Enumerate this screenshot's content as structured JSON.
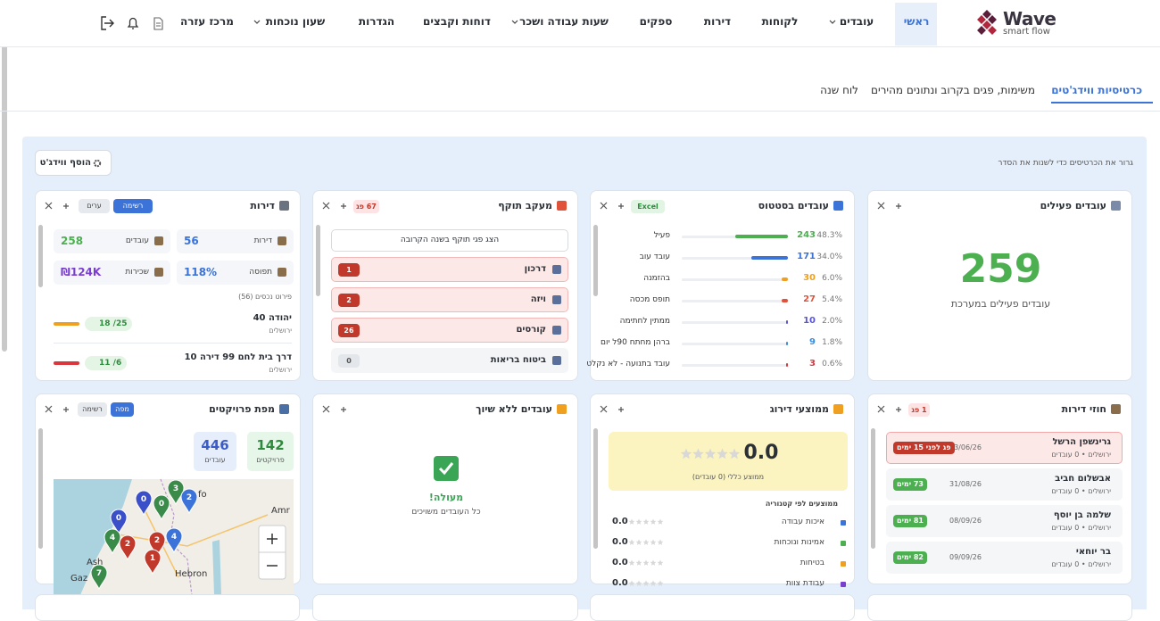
{
  "nav": {
    "logo": "Wave",
    "logo_sub": "smart flow",
    "items": [
      "ראשי",
      "עובדים",
      "לקוחות",
      "דירות",
      "ספקים",
      "שעות עבודה ושכר",
      "דוחות וקבצים",
      "הגדרות",
      "שעון נוכחות",
      "מרכז עזרה"
    ]
  },
  "tabs": [
    "כרטיסיות ווידג'טים",
    "משימות, פגים בקרוב ונתונים מהירים",
    "לוח שנה"
  ],
  "toolbar": {
    "hint": "גרור את הכרטיסים כדי לשנות את הסדר",
    "add_button": "הוסף ווידג'ט"
  },
  "widgets": {
    "active_employees": {
      "title": "עובדים פעילים",
      "value": 259,
      "caption": "עובדים פעילים במערכת"
    },
    "status": {
      "title": "עובדים בסטטוס",
      "badge": "Excel",
      "rows": [
        {
          "label": "פעיל",
          "count": 243,
          "percent": "48.3%",
          "color": "#4caf50"
        },
        {
          "label": "עובד עוב",
          "count": 171,
          "percent": "34.0%",
          "color": "#3b73d9"
        },
        {
          "label": "בהזמנה",
          "count": 30,
          "percent": "6.0%",
          "color": "#f0a020"
        },
        {
          "label": "תופס מכסה",
          "count": 27,
          "percent": "5.4%",
          "color": "#e0533a"
        },
        {
          "label": "ממתין לחתימה",
          "count": 10,
          "percent": "2.0%",
          "color": "#5a55d6"
        },
        {
          "label": "ברהן מחתח 90ל יום",
          "count": 9,
          "percent": "1.8%",
          "color": "#3b8fd9"
        },
        {
          "label": "עובד בתנועה - לא נקלט",
          "count": 3,
          "percent": "0.6%",
          "color": "#d9363e"
        }
      ]
    },
    "expiry": {
      "title": "מעקב תוקף",
      "badge": "67 פג",
      "button": "הצג פגי תוקף בשנה הקרובה",
      "rows": [
        {
          "label": "דרכון",
          "count": 1
        },
        {
          "label": "ויזה",
          "count": 2
        },
        {
          "label": "קורסים",
          "count": 26
        },
        {
          "label": "ביטוח בריאות",
          "count": 0
        }
      ]
    },
    "apartments": {
      "title": "דירות",
      "buttons": [
        "רשימה",
        "ערים"
      ],
      "stats": [
        {
          "label": "דירות",
          "value": "56",
          "color": "#3b73d9"
        },
        {
          "label": "עובדים",
          "value": "258",
          "color": "#4caf50"
        },
        {
          "label": "תפוסה",
          "value": "118%",
          "color": "#3b73d9"
        },
        {
          "label": "שכירות",
          "value": "₪124K",
          "color": "#7b3fd0"
        }
      ],
      "list_title": "פירוט נכסים (56)",
      "items": [
        {
          "name": "יהודה 40",
          "city": "ירושלים",
          "occupancy": "18 /25"
        },
        {
          "name": "דרך בית לחם 99 דירה 10",
          "city": "ירושלים",
          "occupancy": "11 /6"
        }
      ]
    },
    "contracts": {
      "title": "חוזי דירות",
      "badge": "1 פג",
      "rows": [
        {
          "name": "גרינשפן הרשל",
          "sub": "ירושלים • 0 עובדים",
          "date": "03/06/26",
          "status": "פג לפני 15 ימים"
        },
        {
          "name": "אבשלום חביב",
          "sub": "ירושלים • 0 עובדים",
          "date": "31/08/26",
          "status": "73 ימים"
        },
        {
          "name": "שלמה בן יוסף",
          "sub": "ירושלים • 0 עובדים",
          "date": "08/09/26",
          "status": "81 ימים"
        },
        {
          "name": "בר יוחאי",
          "sub": "ירושלים • 0 עובדים",
          "date": "09/09/26",
          "status": "82 ימים"
        }
      ]
    },
    "ratings": {
      "title": "ממוצעי דירוג",
      "value": "0.0",
      "caption": "ממוצע כללי (0 עובדים)",
      "section": "ממוצעים לפי קטגוריה",
      "rows": [
        {
          "label": "איכות עבודה",
          "value": "0.0",
          "color": "#3b73d9"
        },
        {
          "label": "אמינות ונוכחות",
          "value": "0.0",
          "color": "#4caf50"
        },
        {
          "label": "בטיחות",
          "value": "0.0",
          "color": "#f0a020"
        },
        {
          "label": "עבודת צוות",
          "value": "0.0",
          "color": "#7b3fd0"
        }
      ]
    },
    "unassigned": {
      "title": "עובדים ללא שיוך",
      "status": "מעולה!",
      "caption": "כל העובדים משויכים"
    },
    "map": {
      "title": "מפת פרויקטים",
      "buttons": [
        "מפה",
        "רשימה"
      ],
      "stats": [
        {
          "value": 142,
          "label": "פרויקטים",
          "color": "#2e8b3e",
          "bg": "#e6f6e8"
        },
        {
          "value": 446,
          "label": "עובדים",
          "color": "#3b5bc9",
          "bg": "#e6eefb"
        }
      ],
      "pins": [
        0,
        4,
        2,
        2,
        1,
        0,
        0,
        3,
        2,
        4,
        7
      ],
      "labels": [
        "Ash",
        "Hebron",
        "Gaz",
        "Amr",
        "fo"
      ]
    }
  }
}
